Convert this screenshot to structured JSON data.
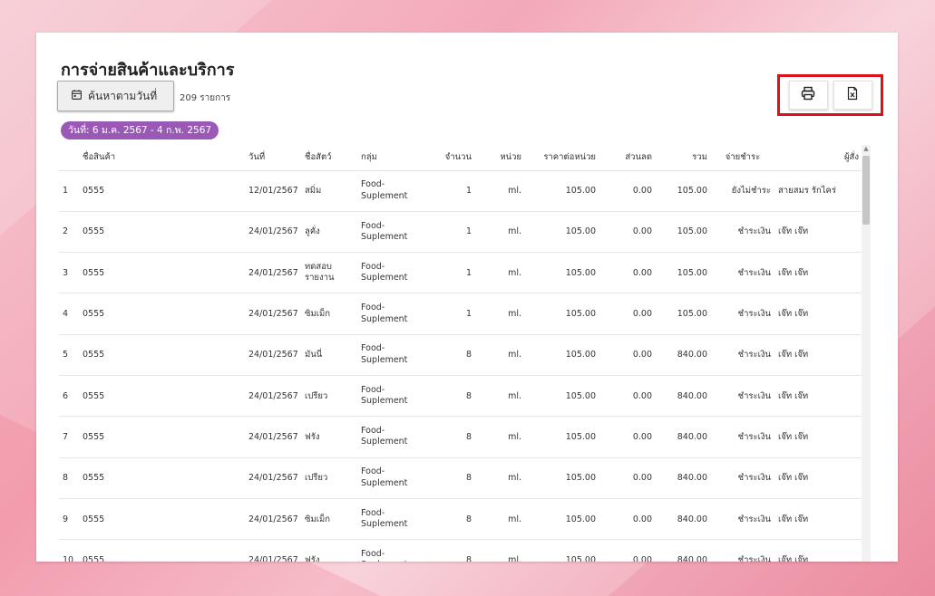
{
  "page_title": "การจ่ายสินค้าและบริการ",
  "search_button_label": "ค้นหาตามวันที่",
  "record_count": "209 รายการ",
  "date_range": "วันที่: 6 ม.ค. 2567 - 4 ก.พ. 2567",
  "icons": {
    "calendar": "calendar-icon",
    "print": "printer-icon",
    "excel": "excel-file-icon"
  },
  "colors": {
    "chip": "#9b59b6",
    "highlight": "#e0101a"
  },
  "table": {
    "headers": [
      "",
      "ชื่อสินค้า",
      "วันที่",
      "ชื่อสัตว์",
      "กลุ่ม",
      "จำนวน",
      "หน่วย",
      "ราคาต่อหน่วย",
      "ส่วนลด",
      "รวม",
      "จ่ายชำระ",
      "ผู้สั่ง"
    ],
    "rows": [
      [
        "1",
        "0555",
        "12/01/2567",
        "สมิ่ม",
        "Food-\nSuplement",
        "1",
        "ml.",
        "105.00",
        "0.00",
        "105.00",
        "ยังไม่ชำระ",
        "สายสมร รักไคร่"
      ],
      [
        "2",
        "0555",
        "24/01/2567",
        "ลูคั่ง",
        "Food-\nSuplement",
        "1",
        "ml.",
        "105.00",
        "0.00",
        "105.00",
        "ชำระเงิน",
        "เจ๊ท เจ๊ท"
      ],
      [
        "3",
        "0555",
        "24/01/2567",
        "ทดสอบ\nรายงาน",
        "Food-\nSuplement",
        "1",
        "ml.",
        "105.00",
        "0.00",
        "105.00",
        "ชำระเงิน",
        "เจ๊ท เจ๊ท"
      ],
      [
        "4",
        "0555",
        "24/01/2567",
        "ซิมเม็ก",
        "Food-\nSuplement",
        "1",
        "ml.",
        "105.00",
        "0.00",
        "105.00",
        "ชำระเงิน",
        "เจ๊ท เจ๊ท"
      ],
      [
        "5",
        "0555",
        "24/01/2567",
        "มันนี่",
        "Food-\nSuplement",
        "8",
        "ml.",
        "105.00",
        "0.00",
        "840.00",
        "ชำระเงิน",
        "เจ๊ท เจ๊ท"
      ],
      [
        "6",
        "0555",
        "24/01/2567",
        "เปรียว",
        "Food-\nSuplement",
        "8",
        "ml.",
        "105.00",
        "0.00",
        "840.00",
        "ชำระเงิน",
        "เจ๊ท เจ๊ท"
      ],
      [
        "7",
        "0555",
        "24/01/2567",
        "ฟรัง",
        "Food-\nSuplement",
        "8",
        "ml.",
        "105.00",
        "0.00",
        "840.00",
        "ชำระเงิน",
        "เจ๊ท เจ๊ท"
      ],
      [
        "8",
        "0555",
        "24/01/2567",
        "เปรียว",
        "Food-\nSuplement",
        "8",
        "ml.",
        "105.00",
        "0.00",
        "840.00",
        "ชำระเงิน",
        "เจ๊ท เจ๊ท"
      ],
      [
        "9",
        "0555",
        "24/01/2567",
        "ซิมเม็ก",
        "Food-\nSuplement",
        "8",
        "ml.",
        "105.00",
        "0.00",
        "840.00",
        "ชำระเงิน",
        "เจ๊ท เจ๊ท"
      ],
      [
        "10",
        "0555",
        "24/01/2567",
        "ฟรัง",
        "Food-\nSuplement",
        "8",
        "ml.",
        "105.00",
        "0.00",
        "840.00",
        "ชำระเงิน",
        "เจ๊ท เจ๊ท"
      ]
    ]
  }
}
